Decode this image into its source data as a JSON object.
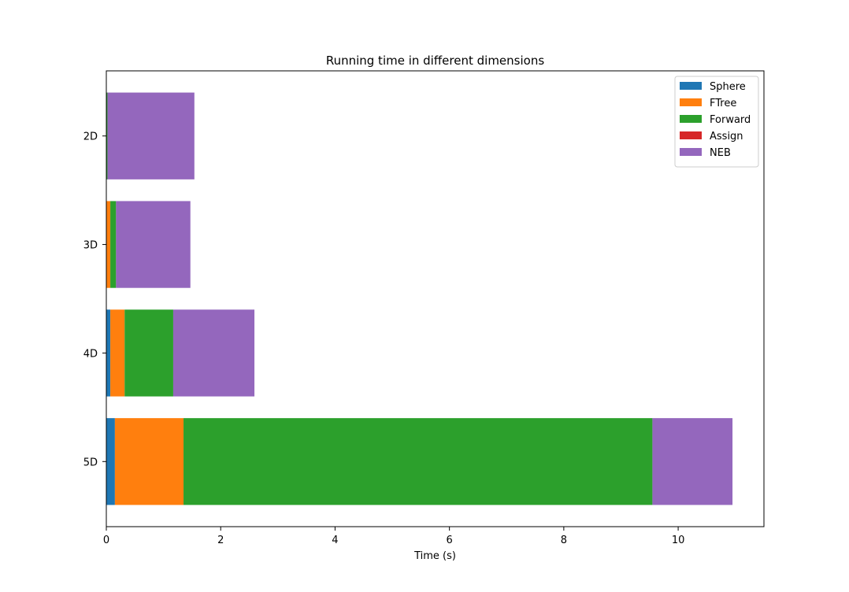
{
  "chart_data": {
    "type": "bar",
    "orientation": "horizontal",
    "stacked": true,
    "title": "Running time in different dimensions",
    "xlabel": "Time (s)",
    "ylabel": "",
    "xlim": [
      0,
      11.5
    ],
    "xticks": [
      0,
      2,
      4,
      6,
      8,
      10
    ],
    "categories": [
      "2D",
      "3D",
      "4D",
      "5D"
    ],
    "series": [
      {
        "name": "Sphere",
        "color": "#1f77b4",
        "values": [
          0.0,
          0.0,
          0.07,
          0.15
        ]
      },
      {
        "name": "FTree",
        "color": "#ff7f0e",
        "values": [
          0.0,
          0.07,
          0.25,
          1.2
        ]
      },
      {
        "name": "Forward",
        "color": "#2ca02c",
        "values": [
          0.02,
          0.1,
          0.85,
          8.2
        ]
      },
      {
        "name": "Assign",
        "color": "#d62728",
        "values": [
          0.0,
          0.0,
          0.0,
          0.0
        ]
      },
      {
        "name": "NEB",
        "color": "#9467bd",
        "values": [
          1.52,
          1.3,
          1.42,
          1.4
        ]
      }
    ],
    "grid": false,
    "legend_position": "top-right"
  }
}
